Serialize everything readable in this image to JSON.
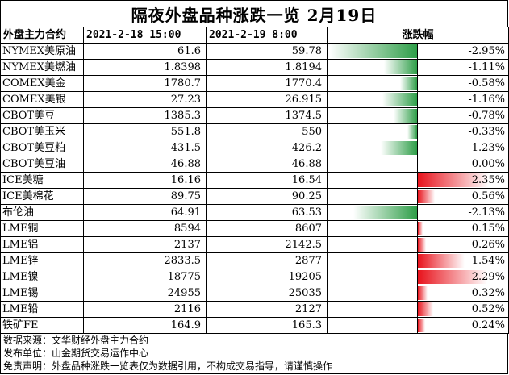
{
  "title": "隔夜外盘品种涨跌一览 2月19日",
  "header": {
    "name": "外盘主力合约",
    "date_a": "2021-2-18 15:00",
    "date_b": "2021-2-19 8:00",
    "change": "涨跌幅"
  },
  "colors": {
    "negative": "#2e9e48",
    "positive": "#e8121b"
  },
  "rows": [
    {
      "name": "NYMEX美原油",
      "a": "61.6",
      "b": "59.78",
      "change": "-2.95%",
      "value": -2.95
    },
    {
      "name": "NYMEX美燃油",
      "a": "1.8398",
      "b": "1.8194",
      "change": "-1.11%",
      "value": -1.11
    },
    {
      "name": "COMEX美金",
      "a": "1780.7",
      "b": "1770.4",
      "change": "-0.58%",
      "value": -0.58
    },
    {
      "name": "COMEX美银",
      "a": "27.23",
      "b": "26.915",
      "change": "-1.16%",
      "value": -1.16
    },
    {
      "name": "CBOT美豆",
      "a": "1385.3",
      "b": "1374.5",
      "change": "-0.78%",
      "value": -0.78
    },
    {
      "name": "CBOT美玉米",
      "a": "551.8",
      "b": "550",
      "change": "-0.33%",
      "value": -0.33
    },
    {
      "name": "CBOT美豆粕",
      "a": "431.5",
      "b": "426.2",
      "change": "-1.23%",
      "value": -1.23
    },
    {
      "name": "CBOT美豆油",
      "a": "46.88",
      "b": "46.88",
      "change": "0.00%",
      "value": 0
    },
    {
      "name": "ICE美糖",
      "a": "16.16",
      "b": "16.54",
      "change": "2.35%",
      "value": 2.35
    },
    {
      "name": "ICE美棉花",
      "a": "89.75",
      "b": "90.25",
      "change": "0.56%",
      "value": 0.56
    },
    {
      "name": "布伦油",
      "a": "64.91",
      "b": "63.53",
      "change": "-2.13%",
      "value": -2.13
    },
    {
      "name": "LME铜",
      "a": "8594",
      "b": "8607",
      "change": "0.15%",
      "value": 0.15
    },
    {
      "name": "LME铝",
      "a": "2137",
      "b": "2142.5",
      "change": "0.26%",
      "value": 0.26
    },
    {
      "name": "LME锌",
      "a": "2833.5",
      "b": "2877",
      "change": "1.54%",
      "value": 1.54
    },
    {
      "name": "LME镍",
      "a": "18775",
      "b": "19205",
      "change": "2.29%",
      "value": 2.29
    },
    {
      "name": "LME锡",
      "a": "24955",
      "b": "25035",
      "change": "0.32%",
      "value": 0.32
    },
    {
      "name": "LME铅",
      "a": "2116",
      "b": "2127",
      "change": "0.52%",
      "value": 0.52
    },
    {
      "name": "铁矿FE",
      "a": "164.9",
      "b": "165.3",
      "change": "0.24%",
      "value": 0.24
    }
  ],
  "footer": {
    "source": "数据来源：文华财经外盘主力合约",
    "publisher": "发布单位：山金期货交易运作中心",
    "disclaimer": "免责声明：外盘品种涨跌一览表仅为数据引用，不构成交易指导，请谨慎操作"
  }
}
